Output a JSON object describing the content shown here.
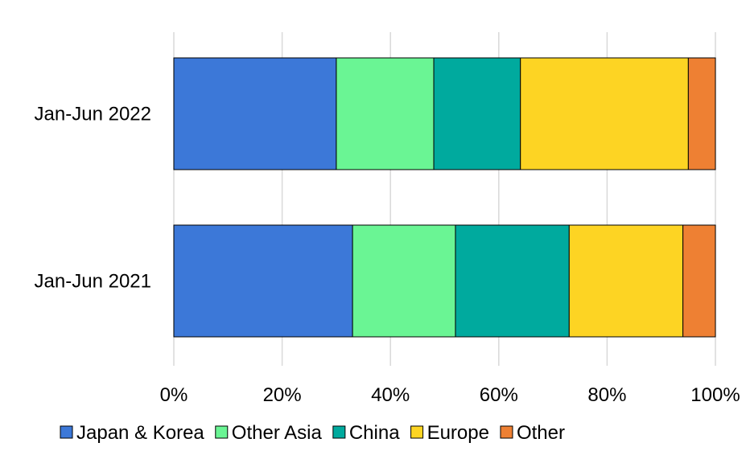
{
  "chart_data": {
    "type": "bar",
    "orientation": "horizontal",
    "stacked": "percent",
    "categories": [
      "Jan-Jun 2022",
      "Jan-Jun 2021"
    ],
    "series": [
      {
        "name": "Japan & Korea",
        "values": [
          30,
          33
        ],
        "color": "#3C78D8"
      },
      {
        "name": "Other Asia",
        "values": [
          18,
          19
        ],
        "color": "#6AF594"
      },
      {
        "name": "China",
        "values": [
          16,
          21
        ],
        "color": "#00AA9E"
      },
      {
        "name": "Europe",
        "values": [
          31,
          21
        ],
        "color": "#FDD423"
      },
      {
        "name": "Other",
        "values": [
          5,
          6
        ],
        "color": "#EE8033"
      }
    ],
    "xlim": [
      0,
      100
    ],
    "xticks": [
      "0%",
      "20%",
      "40%",
      "60%",
      "80%",
      "100%"
    ],
    "grid": "vertical",
    "legend_position": "bottom"
  }
}
